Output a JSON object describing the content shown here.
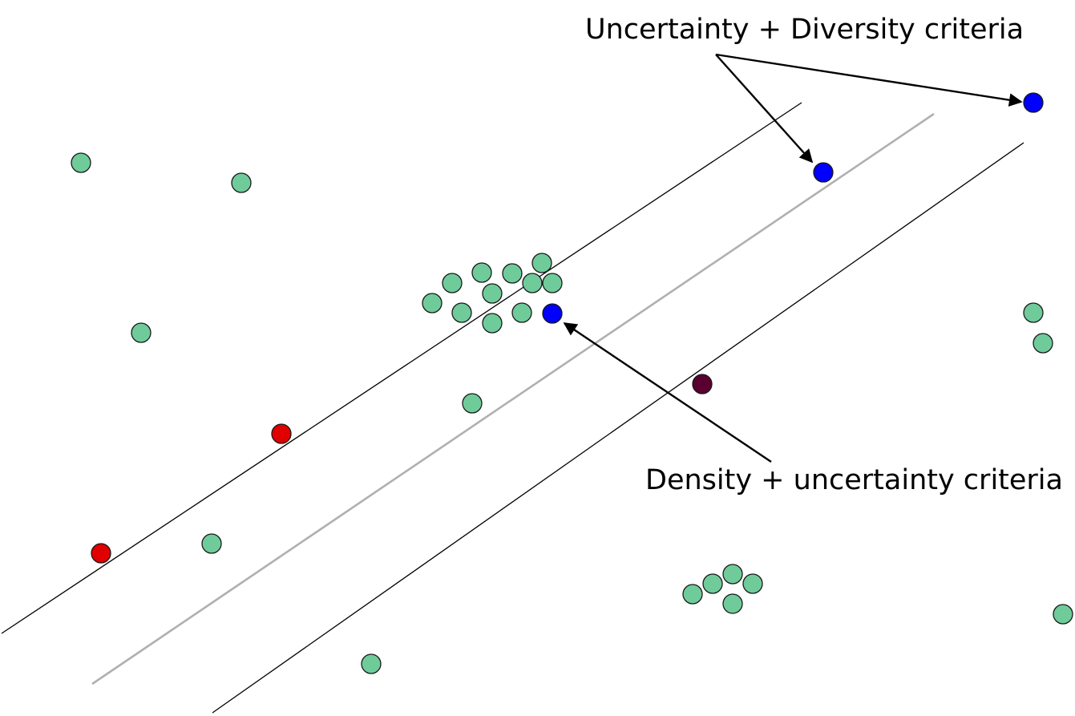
{
  "annotations": {
    "uncertainty_diversity": "Uncertainty + Diversity criteria",
    "density_uncertainty": "Density + uncertainty criteria"
  },
  "colors": {
    "background": "#ffffff",
    "unlabeled_point": "#6fcc9a",
    "class_a_point": "#e00000",
    "class_b_point": "#5a0030",
    "selected_point": "#0000ff",
    "margin_line": "#000000",
    "decision_boundary": "#b0b0b0",
    "arrow": "#000000",
    "point_outline": "#1a1a1a"
  }
}
